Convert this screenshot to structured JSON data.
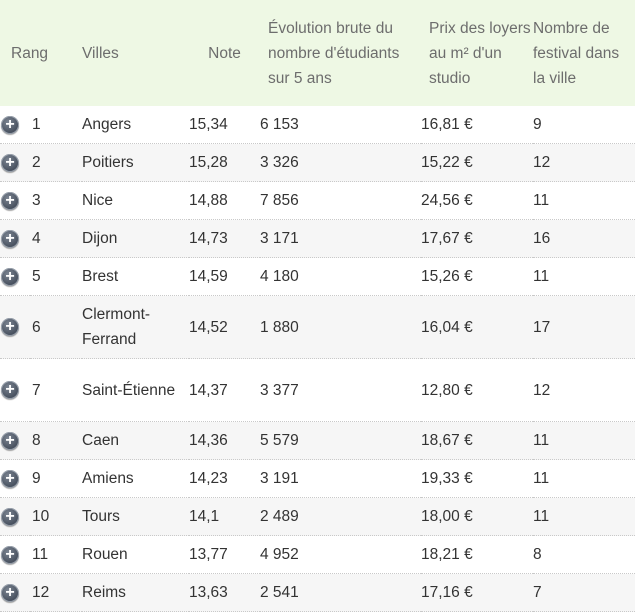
{
  "table": {
    "headers": {
      "rank": "Rang",
      "city": "Villes",
      "note": "Note",
      "evolution": "Évolution brute du nombre d'étudiants sur 5 ans",
      "price": "Prix des loyers au m² d'un studio",
      "festivals": "Nombre de festival dans la ville"
    },
    "expand_icon": "plus-circle-icon",
    "expand_glyph": "+",
    "rows": [
      {
        "rank": "1",
        "city": "Angers",
        "note": "15,34",
        "evolution": "6 153",
        "price": "16,81 €",
        "festivals": "9"
      },
      {
        "rank": "2",
        "city": "Poitiers",
        "note": "15,28",
        "evolution": "3 326",
        "price": "15,22 €",
        "festivals": "12"
      },
      {
        "rank": "3",
        "city": "Nice",
        "note": "14,88",
        "evolution": "7 856",
        "price": "24,56 €",
        "festivals": "11"
      },
      {
        "rank": "4",
        "city": "Dijon",
        "note": "14,73",
        "evolution": "3 171",
        "price": "17,67 €",
        "festivals": "16"
      },
      {
        "rank": "5",
        "city": "Brest",
        "note": "14,59",
        "evolution": "4 180",
        "price": "15,26 €",
        "festivals": "11"
      },
      {
        "rank": "6",
        "city": "Clermont-Ferrand",
        "note": "14,52",
        "evolution": "1 880",
        "price": "16,04 €",
        "festivals": "17"
      },
      {
        "rank": "7",
        "city": "Saint-Étienne",
        "note": "14,37",
        "evolution": "3 377",
        "price": "12,80 €",
        "festivals": "12"
      },
      {
        "rank": "8",
        "city": "Caen",
        "note": "14,36",
        "evolution": "5 579",
        "price": "18,67 €",
        "festivals": "11"
      },
      {
        "rank": "9",
        "city": "Amiens",
        "note": "14,23",
        "evolution": "3 191",
        "price": "19,33 €",
        "festivals": "11"
      },
      {
        "rank": "10",
        "city": "Tours",
        "note": "14,1",
        "evolution": "2 489",
        "price": "18,00 €",
        "festivals": "11"
      },
      {
        "rank": "11",
        "city": "Rouen",
        "note": "13,77",
        "evolution": "4 952",
        "price": "18,21 €",
        "festivals": "8"
      },
      {
        "rank": "12",
        "city": "Reims",
        "note": "13,63",
        "evolution": "2 541",
        "price": "17,16 €",
        "festivals": "7"
      }
    ]
  }
}
